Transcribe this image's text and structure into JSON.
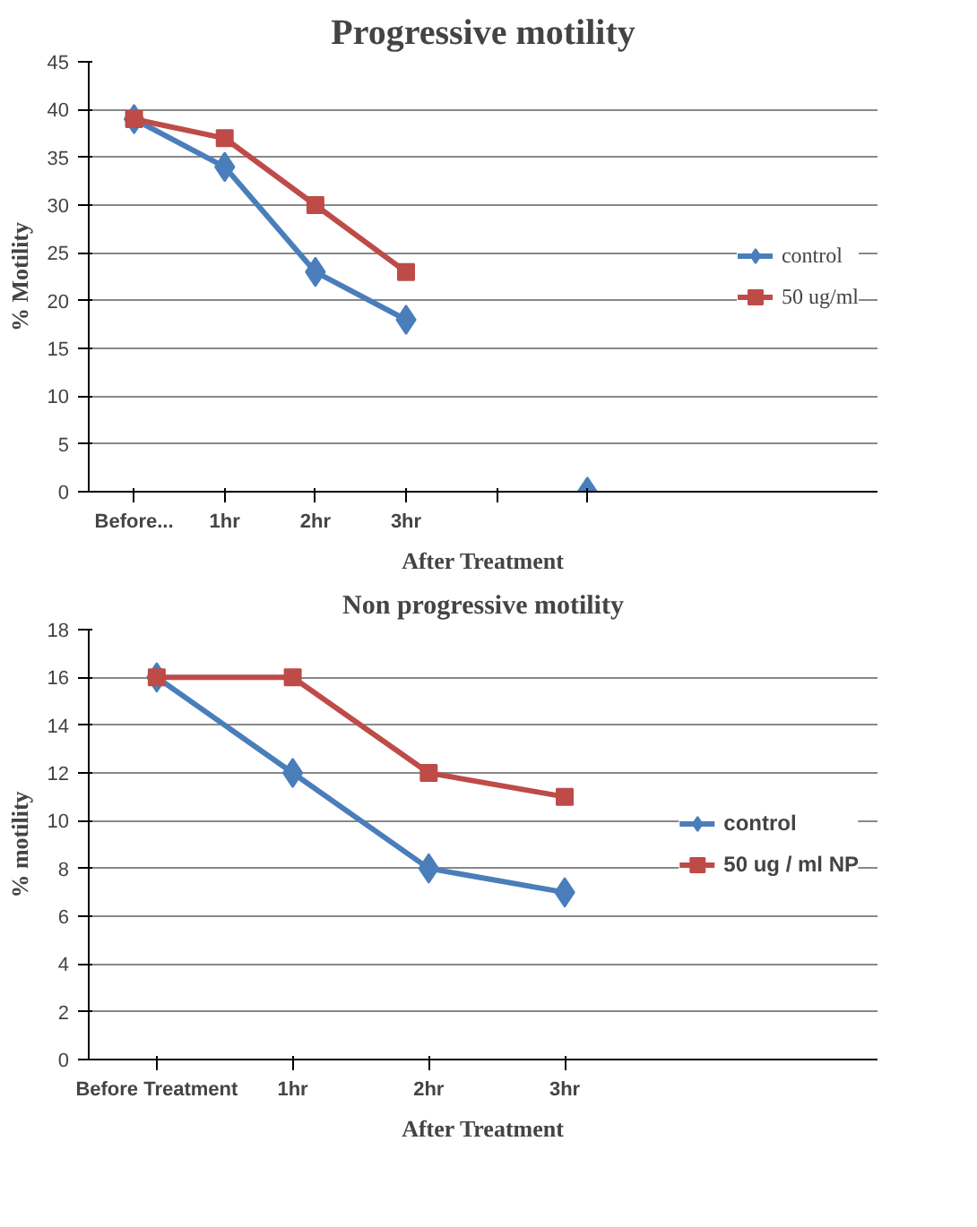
{
  "chart_data": [
    {
      "type": "line",
      "title": "Progressive motility",
      "xlabel": "After Treatment",
      "ylabel": "% Motility",
      "categories": [
        "Before...",
        "1hr",
        "2hr",
        "3hr",
        null,
        null
      ],
      "series": [
        {
          "name": "control",
          "color": "#4a7ebb",
          "marker": "diamond",
          "values": [
            39,
            34,
            23,
            18,
            null,
            0
          ]
        },
        {
          "name": "50 ug/ml",
          "color": "#be4b48",
          "marker": "square",
          "values": [
            39,
            37,
            30,
            23,
            null,
            null
          ]
        }
      ],
      "ylim": [
        0,
        45
      ],
      "yticks": [
        0,
        5,
        10,
        15,
        20,
        25,
        30,
        35,
        40,
        45
      ],
      "grid": "y",
      "legend": "right",
      "line_style": "solid"
    },
    {
      "type": "line",
      "title": "Non progressive motility",
      "xlabel": "After Treatment",
      "ylabel": "% motility",
      "categories": [
        "Before Treatment",
        "1hr",
        "2hr",
        "3hr"
      ],
      "series": [
        {
          "name": "control",
          "color": "#4a7ebb",
          "marker": "diamond",
          "values": [
            16,
            12,
            8,
            7
          ]
        },
        {
          "name": "50 ug / ml NP",
          "color": "#be4b48",
          "marker": "square",
          "values": [
            16,
            16,
            12,
            11
          ]
        }
      ],
      "ylim": [
        0,
        18
      ],
      "yticks": [
        0,
        2,
        4,
        6,
        8,
        10,
        12,
        14,
        16,
        18
      ],
      "grid": "y",
      "legend": "right",
      "line_style": "solid"
    }
  ]
}
